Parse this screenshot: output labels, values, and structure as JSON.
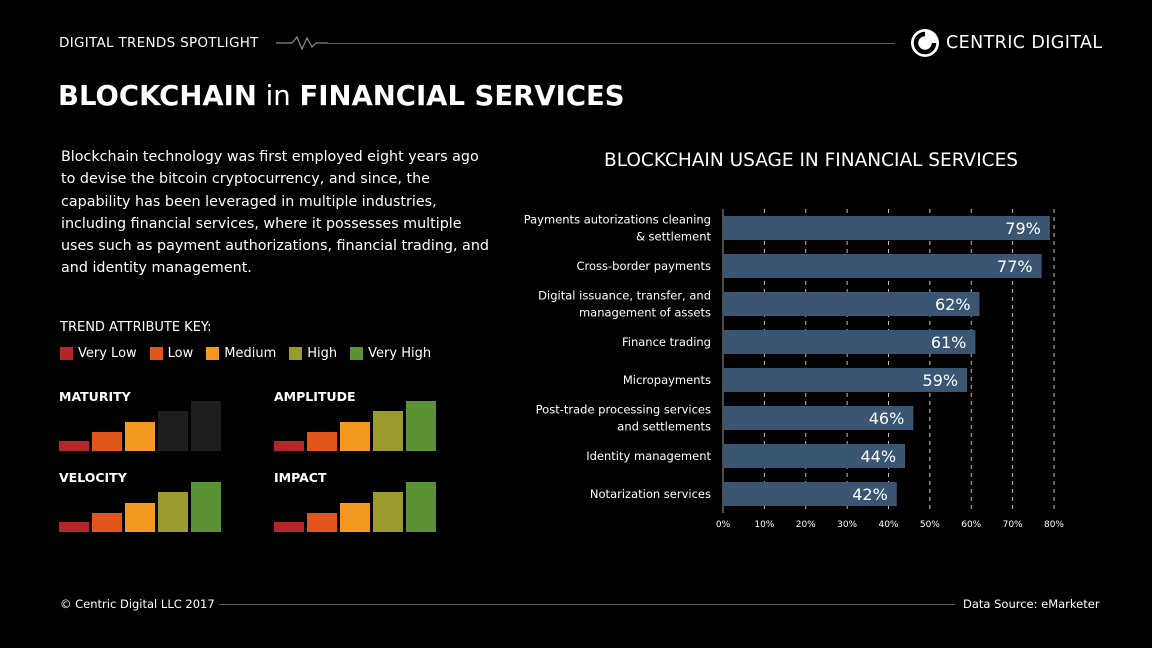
{
  "header": {
    "spotlight": "DIGITAL TRENDS SPOTLIGHT",
    "brand": "CENTRIC DIGITAL"
  },
  "title": {
    "part1": "BLOCKCHAIN",
    "part2": " in ",
    "part3": "FINANCIAL SERVICES"
  },
  "intro": "Blockchain technology was first employed eight years ago to devise the bitcoin cryptocurrency, and since, the capability has been leveraged in multiple industries, including financial services, where it possesses multiple uses such as payment authorizations, financial trading, and and identity management.",
  "key": {
    "title": "TREND ATTRIBUTE KEY:",
    "levels": [
      {
        "label": "Very Low",
        "color": "#b5262a"
      },
      {
        "label": "Low",
        "color": "#e2561c"
      },
      {
        "label": "Medium",
        "color": "#f4981f"
      },
      {
        "label": "High",
        "color": "#9b9a2d"
      },
      {
        "label": "Very High",
        "color": "#5a9234"
      }
    ],
    "inactive_color": "#1e1e1e"
  },
  "attributes": [
    {
      "name": "MATURITY",
      "active_levels": 3
    },
    {
      "name": "AMPLITUDE",
      "active_levels": 5
    },
    {
      "name": "VELOCITY",
      "active_levels": 5
    },
    {
      "name": "IMPACT",
      "active_levels": 5
    }
  ],
  "chart_data": {
    "type": "bar",
    "orientation": "horizontal",
    "title": "BLOCKCHAIN USAGE IN FINANCIAL SERVICES",
    "categories": [
      [
        "Payments autorizations cleaning",
        "& settlement"
      ],
      [
        "Cross-border payments"
      ],
      [
        "Digital issuance, transfer, and",
        "management of assets"
      ],
      [
        "Finance trading"
      ],
      [
        "Micropayments"
      ],
      [
        "Post-trade processing services",
        "and settlements"
      ],
      [
        "Identity management"
      ],
      [
        "Notarization services"
      ]
    ],
    "values": [
      79,
      77,
      62,
      61,
      59,
      46,
      44,
      42
    ],
    "data_labels": [
      "79%",
      "77%",
      "62%",
      "61%",
      "59%",
      "46%",
      "44%",
      "42%"
    ],
    "xticks": [
      "0%",
      "10%",
      "20%",
      "30%",
      "40%",
      "50%",
      "60%",
      "70%",
      "80%"
    ],
    "xlim": [
      0,
      80
    ],
    "grid": "vertical dashed",
    "bar_color": "#3b5673"
  },
  "footer": {
    "copyright": "© Centric Digital LLC 2017",
    "source": "Data Source: eMarketer"
  }
}
